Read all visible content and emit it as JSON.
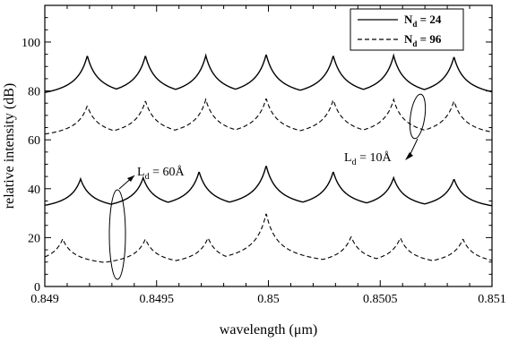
{
  "chart_data": {
    "type": "line",
    "xlabel": "wavelength (μm)",
    "ylabel": "relative intensity (dB)",
    "xlim": [
      0.849,
      0.851
    ],
    "ylim": [
      0,
      115
    ],
    "x_ticks": [
      0.849,
      0.8495,
      0.85,
      0.8505,
      0.851
    ],
    "x_tick_labels": [
      "0.849",
      "0.8495",
      "0.85",
      "0.8505",
      "0.851"
    ],
    "y_ticks": [
      0,
      20,
      40,
      60,
      80,
      100
    ],
    "grid": false,
    "legend_position": "top-right",
    "legend": [
      {
        "label": "N",
        "sub": "d",
        "suffix": " = 24",
        "style": "solid"
      },
      {
        "label": "N",
        "sub": "d",
        "suffix": " = 96",
        "style": "dashed"
      }
    ],
    "series": [
      {
        "style": "solid",
        "baseline": 75,
        "peaks": [
          [
            0.84919,
            94.5
          ],
          [
            0.84945,
            94.5
          ],
          [
            0.84972,
            94.5
          ],
          [
            0.84999,
            95
          ],
          [
            0.85029,
            94.5
          ],
          [
            0.85056,
            94.5
          ],
          [
            0.85083,
            94
          ]
        ]
      },
      {
        "style": "dashed",
        "baseline": 59,
        "peaks": [
          [
            0.84919,
            74
          ],
          [
            0.84945,
            76
          ],
          [
            0.84972,
            76.5
          ],
          [
            0.84999,
            77
          ],
          [
            0.85029,
            76.5
          ],
          [
            0.85056,
            76.5
          ],
          [
            0.85083,
            76
          ]
        ]
      },
      {
        "style": "solid",
        "baseline": 29.5,
        "peaks": [
          [
            0.84916,
            44
          ],
          [
            0.84944,
            44.5
          ],
          [
            0.84969,
            47
          ],
          [
            0.84999,
            49.5
          ],
          [
            0.85029,
            47
          ],
          [
            0.85056,
            44.5
          ],
          [
            0.85083,
            44
          ]
        ]
      },
      {
        "style": "dashed",
        "baseline": 7,
        "peaks": [
          [
            0.84908,
            19.5
          ],
          [
            0.84945,
            19.5
          ],
          [
            0.84973,
            20
          ],
          [
            0.84999,
            30
          ],
          [
            0.85037,
            20.5
          ],
          [
            0.85059,
            20
          ],
          [
            0.85087,
            19.5
          ]
        ]
      }
    ],
    "annotations": [
      {
        "text": "L",
        "sub": "d",
        "suffix": " = 60Å"
      },
      {
        "text": "L",
        "sub": "d",
        "suffix": " = 10Å"
      }
    ]
  }
}
